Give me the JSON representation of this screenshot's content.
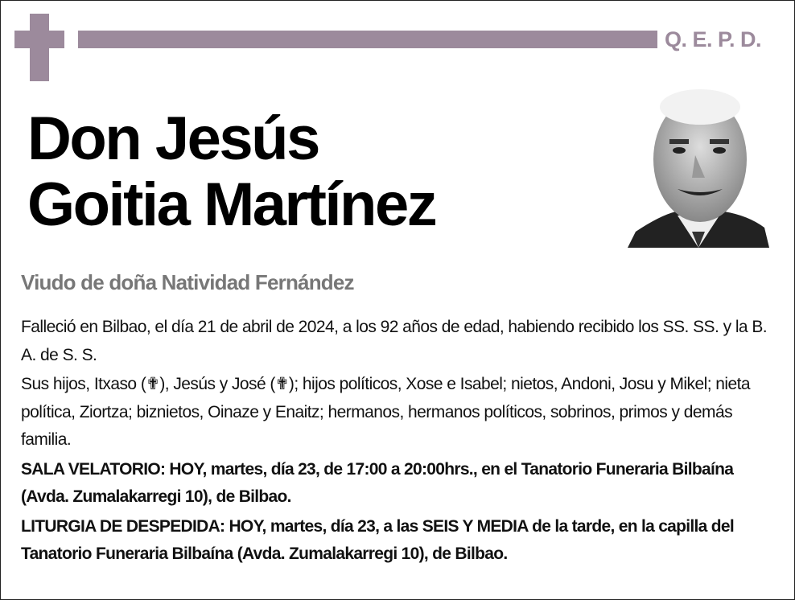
{
  "header": {
    "badge": "Q. E. P. D.",
    "accent_color": "#9c8a9c",
    "icon": "latin-cross-icon"
  },
  "deceased": {
    "line1": "Don Jesús",
    "line2": "Goitia Martínez"
  },
  "photo": {
    "description_icon": "portrait-photo"
  },
  "widow": "Viudo de doña Natividad Fernández",
  "paragraphs": [
    "Falleció en Bilbao, el día 21 de abril de 2024, a los 92 años de edad, habiendo recibido los SS. SS. y la B. A. de S. S.",
    "Sus hijos, Itxaso (✟), Jesús y José (✟); hijos políticos, Xose e Isabel; nietos, Andoni, Josu y Mikel; nieta política, Ziortza; biznietos, Oinaze y Enaitz; hermanos, hermanos políticos, sobrinos, primos y demás familia.",
    "SALA VELATORIO: HOY, martes, día 23, de 17:00 a 20:00hrs., en el Tanatorio Funeraria Bilbaína (Avda. Zumalakarregi 10), de Bilbao.",
    "LITURGIA DE DESPEDIDA: HOY, martes, día 23, a las SEIS Y MEDIA de la tarde, en la capilla del Tanatorio Funeraria Bilbaína (Avda. Zumalakarregi 10), de Bilbao."
  ]
}
